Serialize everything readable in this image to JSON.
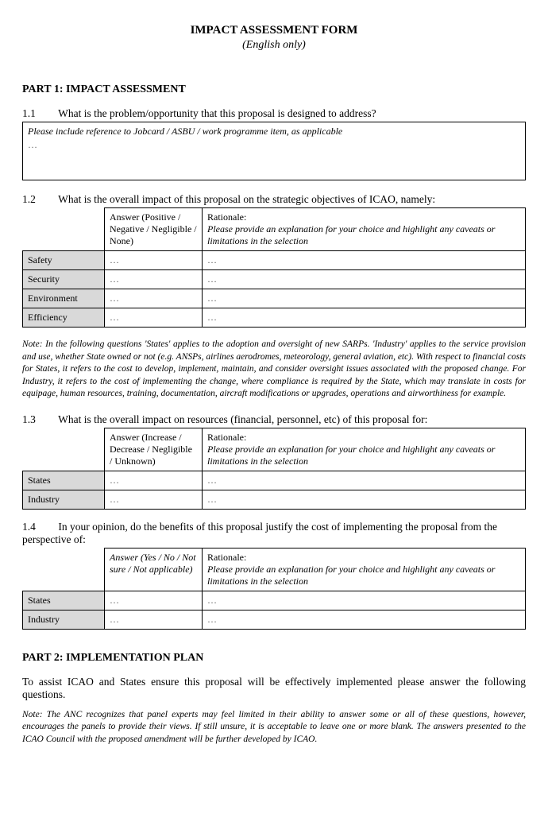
{
  "header": {
    "title": "IMPACT ASSESSMENT FORM",
    "subtitle": "(English only)"
  },
  "part1": {
    "heading": "PART 1: IMPACT ASSESSMENT",
    "q1_1": {
      "num": "1.1",
      "text": "What is the problem/opportunity that this proposal is designed to address?",
      "instruction": "Please include reference to Jobcard / ASBU / work programme item, as applicable",
      "value": "…"
    },
    "q1_2": {
      "num": "1.2",
      "text": "What is the overall impact of this proposal on the strategic objectives of ICAO, namely:",
      "answer_header": "Answer (Positive / Negative / Negligible / None)",
      "rationale_label": "Rationale:",
      "rationale_text": "Please provide an explanation for your choice and highlight  any caveats or limitations in the selection",
      "rows": {
        "safety": {
          "label": "Safety",
          "answer": "…",
          "rationale": "…"
        },
        "security": {
          "label": "Security",
          "answer": "…",
          "rationale": "…"
        },
        "environment": {
          "label": "Environment",
          "answer": "…",
          "rationale": "…"
        },
        "efficiency": {
          "label": "Efficiency",
          "answer": "…",
          "rationale": "…"
        }
      }
    },
    "note1": "Note: In the following questions 'States' applies to the adoption and oversight of new SARPs. 'Industry' applies to the service provision and use, whether State owned or not (e.g. ANSPs, airlines aerodromes, meteorology, general aviation, etc). With respect to financial costs for States, it refers to the cost to develop, implement, maintain, and consider oversight issues associated with the proposed change. For Industry, it refers to the cost of implementing the change, where compliance is required by the State, which may translate in costs for equipage, human resources, training, documentation, aircraft modifications or upgrades, operations and airworthiness for example.",
    "q1_3": {
      "num": "1.3",
      "text": "What is the overall impact on resources (financial, personnel, etc) of this proposal for:",
      "answer_header": "Answer (Increase / Decrease / Negligible / Unknown)",
      "rationale_label": "Rationale:",
      "rationale_text": "Please provide an explanation for your choice and highlight  any caveats or limitations in the selection",
      "rows": {
        "states": {
          "label": "States",
          "answer": "…",
          "rationale": "…"
        },
        "industry": {
          "label": "Industry",
          "answer": "…",
          "rationale": "…"
        }
      }
    },
    "q1_4": {
      "num": "1.4",
      "text": "In your opinion, do the benefits of this proposal justify the cost of implementing the proposal from the perspective of:",
      "answer_header": "Answer (Yes / No / Not sure / Not applicable)",
      "rationale_label": "Rationale:",
      "rationale_text": "Please provide an explanation for your choice and highlight  any caveats or limitations in the selection",
      "rows": {
        "states": {
          "label": "States",
          "answer": "…",
          "rationale": "…"
        },
        "industry": {
          "label": "Industry",
          "answer": "…",
          "rationale": "…"
        }
      }
    }
  },
  "part2": {
    "heading": "PART 2: IMPLEMENTATION PLAN",
    "intro": "To assist ICAO and States ensure this proposal will be effectively implemented please answer the following questions.",
    "note": "Note: The ANC recognizes that panel experts may feel limited in their ability to answer some or all of these questions, however, encourages the panels to provide their views. If still unsure, it is acceptable to leave one or more blank. The answers presented to the ICAO Council with the proposed amendment will be further developed by ICAO."
  },
  "styling": {
    "body_bg": "#ffffff",
    "text_color": "#000000",
    "row_label_bg": "#d9d9d9",
    "border_color": "#000000",
    "font_family": "Times New Roman",
    "title_fontsize": 15,
    "body_fontsize": 13,
    "table_fontsize": 12,
    "note_fontsize": 11.5
  }
}
